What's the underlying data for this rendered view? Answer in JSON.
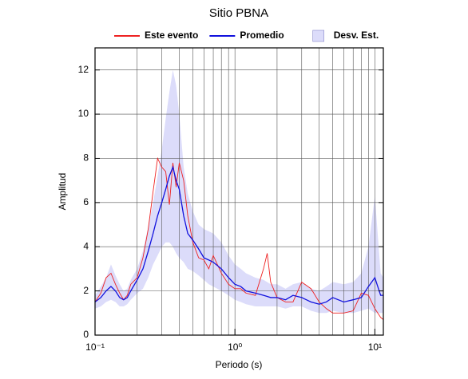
{
  "chart_data": {
    "type": "line",
    "title": "Sitio PBNA",
    "x_label": "Periodo (s)",
    "y_label": "Amplitud",
    "x_scale": "log",
    "xlim": [
      0.1,
      11.5
    ],
    "ylim": [
      0,
      13
    ],
    "xticks": [
      {
        "value": 0.1,
        "label": "10⁻¹"
      },
      {
        "value": 1,
        "label": "10⁰"
      },
      {
        "value": 10,
        "label": "10¹"
      }
    ],
    "xminor": [
      0.2,
      0.3,
      0.4,
      0.5,
      0.6,
      0.7,
      0.8,
      0.9,
      2,
      3,
      4,
      5,
      6,
      7,
      8,
      9
    ],
    "yticks": [
      0,
      2,
      4,
      6,
      8,
      10,
      12
    ],
    "grid": true,
    "legend": "top",
    "x": [
      0.1,
      0.11,
      0.12,
      0.13,
      0.14,
      0.15,
      0.16,
      0.17,
      0.18,
      0.2,
      0.22,
      0.24,
      0.26,
      0.28,
      0.3,
      0.32,
      0.34,
      0.36,
      0.38,
      0.4,
      0.43,
      0.46,
      0.5,
      0.55,
      0.6,
      0.65,
      0.7,
      0.8,
      0.9,
      1,
      1.1,
      1.2,
      1.4,
      1.6,
      1.7,
      1.8,
      2,
      2.3,
      2.6,
      3,
      3.5,
      4,
      4.5,
      5,
      6,
      7,
      8,
      9,
      10,
      11,
      11.5
    ],
    "series": [
      {
        "name": "Este evento",
        "color": "#ee2222",
        "values": [
          1.5,
          1.9,
          2.6,
          2.8,
          2.3,
          1.9,
          1.6,
          1.8,
          2.3,
          2.6,
          3.5,
          4.8,
          6.5,
          8.0,
          7.6,
          7.4,
          5.9,
          7.8,
          6.7,
          7.8,
          7.0,
          5.4,
          4.2,
          3.5,
          3.4,
          3.0,
          3.6,
          2.8,
          2.3,
          2.1,
          2.1,
          1.9,
          1.8,
          3.0,
          3.7,
          2.4,
          1.7,
          1.5,
          1.5,
          2.4,
          2.1,
          1.5,
          1.2,
          1.0,
          1.0,
          1.1,
          1.9,
          1.8,
          1.2,
          0.8,
          0.7
        ]
      },
      {
        "name": "Promedio",
        "color": "#1111dd",
        "values": [
          1.5,
          1.7,
          2.0,
          2.2,
          2.0,
          1.7,
          1.6,
          1.7,
          2.0,
          2.5,
          3.0,
          3.8,
          4.6,
          5.4,
          6.0,
          6.6,
          7.2,
          7.6,
          7.0,
          6.6,
          5.4,
          4.6,
          4.3,
          3.9,
          3.5,
          3.4,
          3.3,
          3.0,
          2.6,
          2.3,
          2.2,
          2.0,
          1.9,
          1.8,
          1.75,
          1.7,
          1.7,
          1.6,
          1.8,
          1.7,
          1.5,
          1.4,
          1.5,
          1.7,
          1.5,
          1.6,
          1.7,
          2.2,
          2.6,
          1.8,
          1.8
        ]
      },
      {
        "name": "Desv. Est.",
        "color": "#dcdcfa",
        "lower": [
          1.2,
          1.3,
          1.5,
          1.6,
          1.5,
          1.3,
          1.3,
          1.4,
          1.6,
          1.9,
          2.1,
          2.6,
          3.2,
          3.6,
          4.0,
          4.2,
          4.2,
          4.0,
          3.7,
          3.5,
          3.3,
          3.0,
          2.9,
          2.7,
          2.5,
          2.3,
          2.2,
          2.0,
          1.8,
          1.6,
          1.5,
          1.4,
          1.3,
          1.3,
          1.3,
          1.3,
          1.3,
          1.2,
          1.3,
          1.3,
          1.1,
          1.0,
          1.0,
          1.1,
          1.0,
          1.0,
          1.1,
          1.2,
          1.0,
          1.0,
          1.0
        ],
        "upper": [
          1.8,
          2.2,
          2.6,
          3.2,
          2.7,
          2.3,
          2.0,
          2.1,
          2.5,
          3.0,
          3.8,
          4.9,
          6.0,
          7.2,
          8.4,
          9.8,
          11.0,
          12.0,
          11.3,
          10.0,
          7.6,
          6.4,
          5.6,
          5.0,
          4.8,
          4.7,
          4.6,
          4.2,
          3.6,
          3.2,
          3.0,
          2.8,
          2.6,
          2.5,
          2.4,
          2.3,
          2.3,
          2.1,
          2.3,
          2.4,
          2.1,
          2.0,
          2.2,
          2.4,
          2.3,
          2.4,
          2.8,
          4.0,
          6.3,
          2.8,
          2.6
        ]
      }
    ]
  }
}
